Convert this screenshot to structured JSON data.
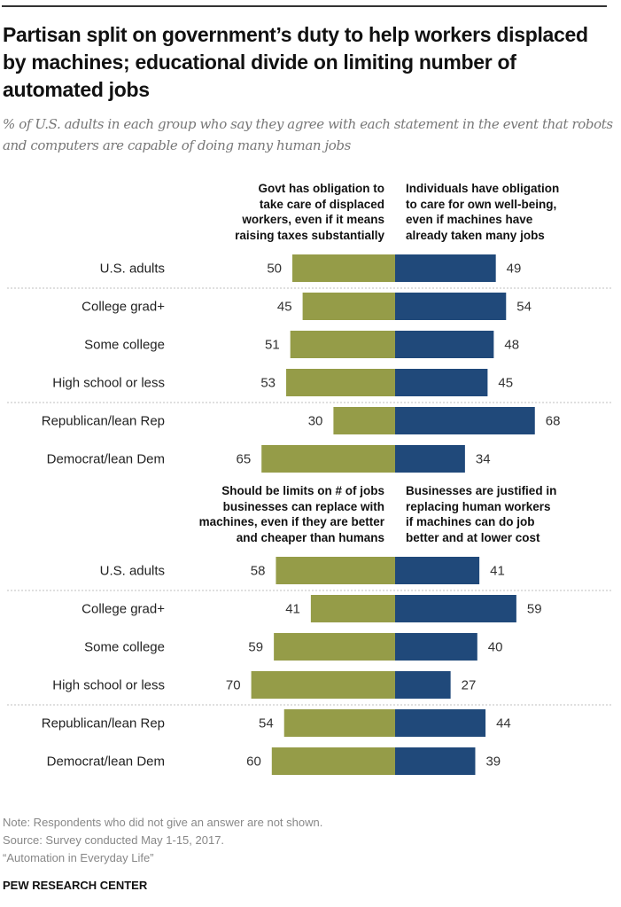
{
  "title": "Partisan split on government’s duty to help workers displaced by machines; educational divide on limiting number of automated jobs",
  "subtitle": "% of U.S. adults in each group who say they agree with each statement in the event that robots and computers are capable of doing many human jobs",
  "colors": {
    "left": "#959C48",
    "right": "#20497A",
    "divider": "#cccccc"
  },
  "footer": {
    "note": "Note: Respondents who did not give an answer are not shown.",
    "source": "Source: Survey conducted May 1-15, 2017.",
    "report": "“Automation in Everyday Life”",
    "brand": "PEW RESEARCH CENTER"
  },
  "chart_data": [
    {
      "type": "bar",
      "orientation": "diverging-horizontal",
      "categories": [
        "U.S. adults",
        "College grad+",
        "Some college",
        "High school or less",
        "Republican/lean Rep",
        "Democrat/lean Dem"
      ],
      "series": [
        {
          "name": "Govt has obligation to take care of displaced workers, even if it means raising taxes substantially",
          "side": "left",
          "values": [
            50,
            45,
            51,
            53,
            30,
            65
          ]
        },
        {
          "name": "Individuals have obligation to care for own well-being, even if machines have already taken many jobs",
          "side": "right",
          "values": [
            49,
            54,
            48,
            45,
            68,
            34
          ]
        }
      ],
      "group_dividers_after": [
        0,
        3
      ],
      "units": "%"
    },
    {
      "type": "bar",
      "orientation": "diverging-horizontal",
      "categories": [
        "U.S. adults",
        "College grad+",
        "Some college",
        "High school or less",
        "Republican/lean Rep",
        "Democrat/lean Dem"
      ],
      "series": [
        {
          "name": "Should be limits on # of jobs businesses can replace with machines, even if they are better and cheaper than humans",
          "side": "left",
          "values": [
            58,
            41,
            59,
            70,
            54,
            60
          ]
        },
        {
          "name": "Businesses are justified in replacing human workers if machines can do job better and at lower cost",
          "side": "right",
          "values": [
            41,
            59,
            40,
            27,
            44,
            39
          ]
        }
      ],
      "group_dividers_after": [
        0,
        3
      ],
      "units": "%"
    }
  ],
  "headers": [
    {
      "left": [
        "Govt has obligation to",
        "take care of displaced",
        "workers, even if it means",
        "raising taxes substantially"
      ],
      "right": [
        "Individuals have obligation",
        "to care for own well-being,",
        "even if machines have",
        "already taken many jobs"
      ]
    },
    {
      "left": [
        "Should be limits on # of jobs",
        "businesses can replace with",
        "machines, even if they are better",
        "and cheaper than humans"
      ],
      "right": [
        "Businesses are justified in",
        "replacing human workers",
        "if machines can do job",
        "better and at lower cost"
      ]
    }
  ]
}
